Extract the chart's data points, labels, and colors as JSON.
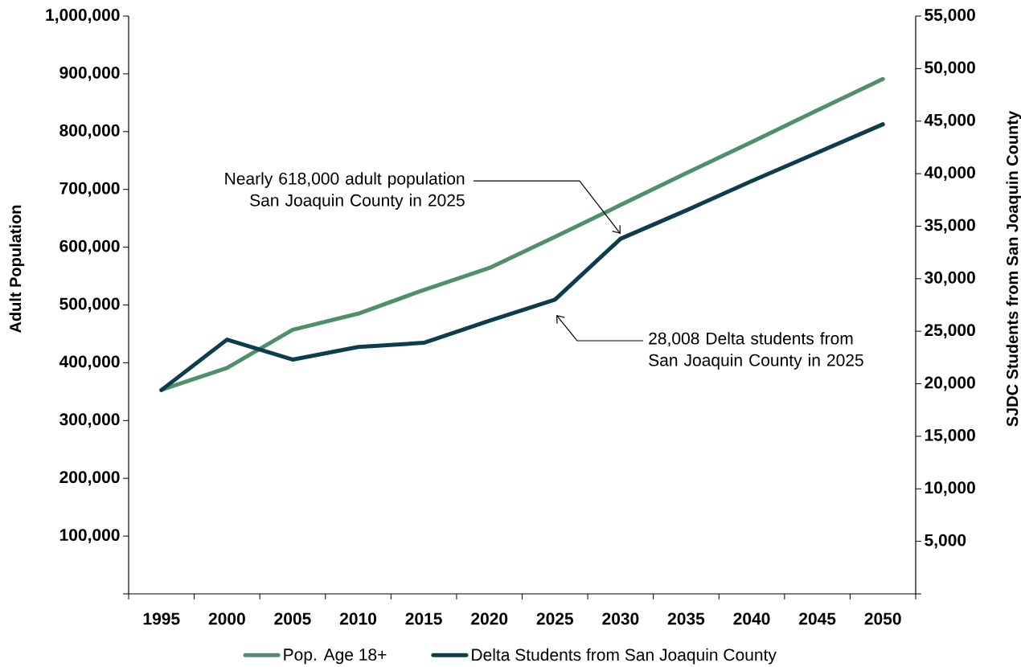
{
  "chart_data": {
    "type": "line",
    "categories": [
      "1995",
      "2000",
      "2005",
      "2010",
      "2015",
      "2020",
      "2025",
      "2030",
      "2035",
      "2040",
      "2045",
      "2050"
    ],
    "series": [
      {
        "name": "Pop. Age 18+",
        "color": "#4f8f6c",
        "values": [
          353000,
          391000,
          457000,
          485000,
          526000,
          564000,
          618000,
          673000,
          728000,
          782000,
          837000,
          891000
        ]
      },
      {
        "name": "Delta Students from San Joaquin County",
        "color": "#0d3c4b",
        "axis": "y2",
        "values": [
          19400,
          24200,
          22300,
          23500,
          23900,
          26000,
          28008,
          33800,
          36500,
          39300,
          42000,
          44700
        ]
      }
    ],
    "ylabel": "Adult Population",
    "y2label": "SJDC Students from San Joaquin County",
    "ylim": [
      0,
      1000000
    ],
    "yticks": [
      {
        "value": 0,
        "label": null
      },
      {
        "value": 100000,
        "label": "100,000"
      },
      {
        "value": 200000,
        "label": "200,000"
      },
      {
        "value": 300000,
        "label": "300,000"
      },
      {
        "value": 400000,
        "label": "400,000"
      },
      {
        "value": 500000,
        "label": "500,000"
      },
      {
        "value": 600000,
        "label": "600,000"
      },
      {
        "value": 700000,
        "label": "700,000"
      },
      {
        "value": 800000,
        "label": "800,000"
      },
      {
        "value": 900000,
        "label": "900,000"
      },
      {
        "value": 1000000,
        "label": "1,000,000"
      }
    ],
    "y2lim": [
      0,
      55000
    ],
    "y2ticks": [
      {
        "value": 0,
        "label": null
      },
      {
        "value": 5000,
        "label": "5,000"
      },
      {
        "value": 10000,
        "label": "10,000"
      },
      {
        "value": 15000,
        "label": "15,000"
      },
      {
        "value": 20000,
        "label": "20,000"
      },
      {
        "value": 25000,
        "label": "25,000"
      },
      {
        "value": 30000,
        "label": "30,000"
      },
      {
        "value": 35000,
        "label": "35,000"
      },
      {
        "value": 40000,
        "label": "40,000"
      },
      {
        "value": 45000,
        "label": "45,000"
      },
      {
        "value": 50000,
        "label": "50,000"
      },
      {
        "value": 55000,
        "label": "55,000"
      }
    ],
    "legend": "bottom",
    "annotations": [
      {
        "text": "Nearly 618,000 adult population San Joaquin County in 2025",
        "x": "2030",
        "y": 623000
      },
      "28,008 Delta students from San Joaquin County in 2025"
    ]
  }
}
